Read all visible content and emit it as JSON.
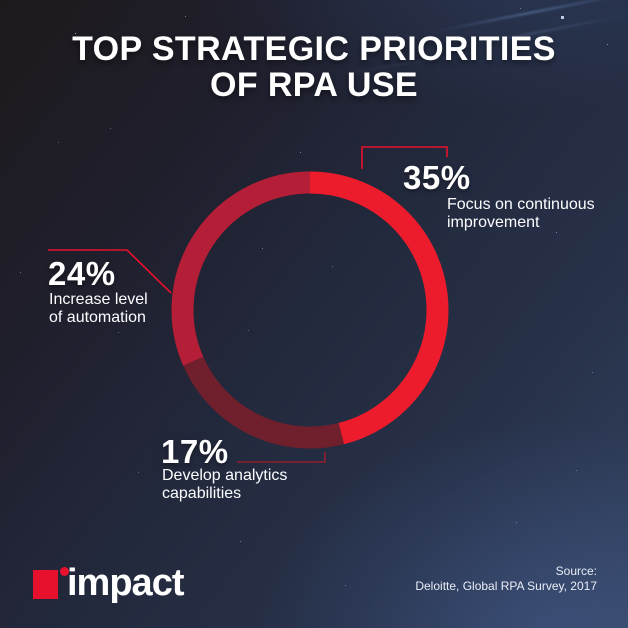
{
  "header": {
    "line1": "TOP STRATEGIC PRIORITIES",
    "line2": "OF RPA USE"
  },
  "chart_data": {
    "type": "pie",
    "variant": "donut",
    "title": "Top strategic priorities of RPA use",
    "direction": "clockwise",
    "start_angle_deg": 0,
    "note": "segments normalized to full circle; labeled values sum to 76%",
    "segments": [
      {
        "pct": 35,
        "pct_label": "35%",
        "label": "Focus on continuous improvement",
        "desc_line1": "Focus on continuous",
        "desc_line2": "improvement",
        "color": "#ec1c2c"
      },
      {
        "pct": 17,
        "pct_label": "17%",
        "label": "Develop analytics capabilities",
        "desc_line1": "Develop analytics",
        "desc_line2": "capabilities",
        "color": "#701f2c"
      },
      {
        "pct": 24,
        "pct_label": "24%",
        "label": "Increase level of automation",
        "desc_line1": "Increase level",
        "desc_line2": "of automation",
        "color": "#b51e37"
      }
    ]
  },
  "footer": {
    "logo_text": "impact",
    "source_line1": "Source:",
    "source_line2": "Deloitte, Global RPA Survey, 2017"
  },
  "colors": {
    "accent_red": "#e8112d",
    "leader_dark_red": "#8f1f2e",
    "background_top_left": "#1e1a1c",
    "background_mid": "#232a3e",
    "background_bottom_right": "#33425f",
    "text": "#ffffff",
    "source_text": "#e9edf5"
  }
}
